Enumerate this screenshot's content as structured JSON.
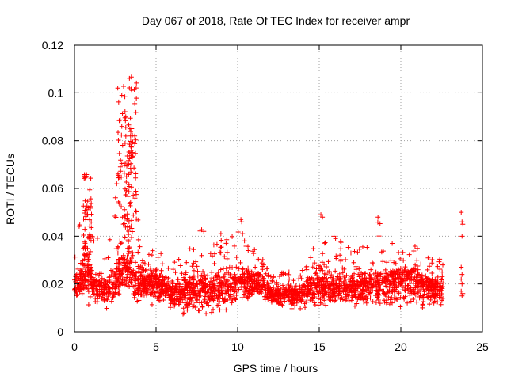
{
  "chart_data": {
    "type": "scatter",
    "title": "Day 067 of 2018, Rate Of TEC Index for receiver ampr",
    "xlabel": "GPS time / hours",
    "ylabel": "ROTI / TECUs",
    "xlim": [
      0,
      25
    ],
    "ylim": [
      0,
      0.12
    ],
    "xticks": [
      0,
      5,
      10,
      15,
      20,
      25
    ],
    "xtick_labels": [
      "0",
      "5",
      "10",
      "15",
      "20",
      "25"
    ],
    "yticks": [
      0,
      0.02,
      0.04,
      0.06,
      0.08,
      0.1,
      0.12
    ],
    "ytick_labels": [
      "0",
      "0.02",
      "0.04",
      "0.06",
      "0.08",
      "0.1",
      "0.12"
    ],
    "grid": true,
    "marker": "+",
    "series": [
      {
        "name": "ROTI",
        "color": "#ff0000",
        "x_range": [
          0,
          23.8
        ],
        "envelope": [
          {
            "x": 0.0,
            "low": 0.013,
            "typ": 0.02,
            "high": 0.033
          },
          {
            "x": 0.5,
            "low": 0.01,
            "typ": 0.022,
            "high": 0.053
          },
          {
            "x": 0.8,
            "low": 0.01,
            "typ": 0.024,
            "high": 0.066
          },
          {
            "x": 1.2,
            "low": 0.009,
            "typ": 0.02,
            "high": 0.045
          },
          {
            "x": 1.6,
            "low": 0.008,
            "typ": 0.017,
            "high": 0.035
          },
          {
            "x": 2.0,
            "low": 0.008,
            "typ": 0.018,
            "high": 0.03
          },
          {
            "x": 2.5,
            "low": 0.01,
            "typ": 0.02,
            "high": 0.055
          },
          {
            "x": 2.9,
            "low": 0.01,
            "typ": 0.025,
            "high": 0.104
          },
          {
            "x": 3.3,
            "low": 0.011,
            "typ": 0.025,
            "high": 0.09
          },
          {
            "x": 3.55,
            "low": 0.01,
            "typ": 0.024,
            "high": 0.107
          },
          {
            "x": 3.9,
            "low": 0.01,
            "typ": 0.02,
            "high": 0.062
          },
          {
            "x": 4.4,
            "low": 0.012,
            "typ": 0.02,
            "high": 0.045
          },
          {
            "x": 5.0,
            "low": 0.01,
            "typ": 0.02,
            "high": 0.04
          },
          {
            "x": 5.6,
            "low": 0.012,
            "typ": 0.018,
            "high": 0.028
          },
          {
            "x": 6.2,
            "low": 0.006,
            "typ": 0.015,
            "high": 0.03
          },
          {
            "x": 7.0,
            "low": 0.004,
            "typ": 0.016,
            "high": 0.035
          },
          {
            "x": 7.6,
            "low": 0.005,
            "typ": 0.017,
            "high": 0.049
          },
          {
            "x": 8.5,
            "low": 0.006,
            "typ": 0.017,
            "high": 0.04
          },
          {
            "x": 9.2,
            "low": 0.008,
            "typ": 0.018,
            "high": 0.05
          },
          {
            "x": 10.2,
            "low": 0.01,
            "typ": 0.02,
            "high": 0.047
          },
          {
            "x": 11.0,
            "low": 0.01,
            "typ": 0.02,
            "high": 0.035
          },
          {
            "x": 11.6,
            "low": 0.011,
            "typ": 0.019,
            "high": 0.032
          },
          {
            "x": 12.2,
            "low": 0.01,
            "typ": 0.015,
            "high": 0.024
          },
          {
            "x": 13.0,
            "low": 0.008,
            "typ": 0.015,
            "high": 0.027
          },
          {
            "x": 14.0,
            "low": 0.008,
            "typ": 0.016,
            "high": 0.026
          },
          {
            "x": 15.0,
            "low": 0.009,
            "typ": 0.02,
            "high": 0.049
          },
          {
            "x": 15.6,
            "low": 0.009,
            "typ": 0.018,
            "high": 0.032
          },
          {
            "x": 16.0,
            "low": 0.01,
            "typ": 0.018,
            "high": 0.04
          },
          {
            "x": 17.0,
            "low": 0.009,
            "typ": 0.018,
            "high": 0.034
          },
          {
            "x": 17.8,
            "low": 0.008,
            "typ": 0.019,
            "high": 0.042
          },
          {
            "x": 18.6,
            "low": 0.009,
            "typ": 0.019,
            "high": 0.048
          },
          {
            "x": 19.6,
            "low": 0.008,
            "typ": 0.02,
            "high": 0.036
          },
          {
            "x": 20.4,
            "low": 0.009,
            "typ": 0.022,
            "high": 0.04
          },
          {
            "x": 21.2,
            "low": 0.008,
            "typ": 0.02,
            "high": 0.034
          },
          {
            "x": 22.0,
            "low": 0.008,
            "typ": 0.018,
            "high": 0.03
          },
          {
            "x": 22.6,
            "low": 0.005,
            "typ": 0.018,
            "high": 0.031
          }
        ],
        "outliers": [
          {
            "x": 10.2,
            "y": 0.047
          },
          {
            "x": 10.25,
            "y": 0.046
          },
          {
            "x": 15.1,
            "y": 0.049
          },
          {
            "x": 15.2,
            "y": 0.048
          },
          {
            "x": 15.9,
            "y": 0.04
          },
          {
            "x": 16.0,
            "y": 0.039
          },
          {
            "x": 18.6,
            "y": 0.048
          },
          {
            "x": 23.7,
            "y": 0.05
          },
          {
            "x": 23.75,
            "y": 0.046
          },
          {
            "x": 23.8,
            "y": 0.045
          },
          {
            "x": 23.75,
            "y": 0.04
          },
          {
            "x": 23.7,
            "y": 0.027
          },
          {
            "x": 23.75,
            "y": 0.024
          },
          {
            "x": 23.7,
            "y": 0.022
          },
          {
            "x": 23.75,
            "y": 0.02
          },
          {
            "x": 23.7,
            "y": 0.017
          },
          {
            "x": 23.8,
            "y": 0.016
          },
          {
            "x": 23.75,
            "y": 0.015
          }
        ]
      }
    ]
  }
}
